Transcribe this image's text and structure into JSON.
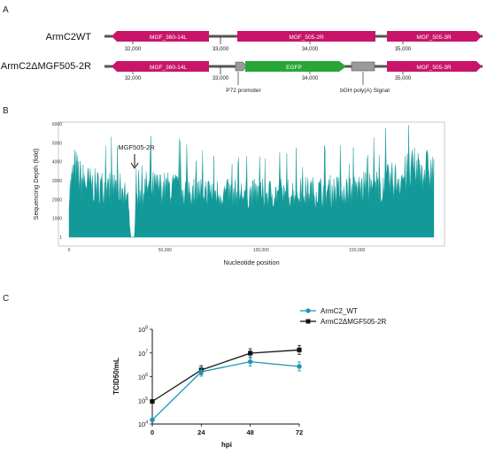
{
  "panels": {
    "a": "A",
    "b": "B",
    "c": "C"
  },
  "panel_a": {
    "wt_label": "ArmC2WT",
    "mut_label": "ArmC2ΔMGF505-2R",
    "wt_genes": [
      "MGF_360-14L",
      "MGF_505-2R",
      "MGF_505-3R"
    ],
    "mut_genes": [
      "MGF_360-14L",
      "EGFP",
      "MGF_505-3R"
    ],
    "wt_ticks": [
      "32,000",
      "33,000",
      "34,000",
      "35,000"
    ],
    "mut_ticks": [
      "32,000",
      "33,000",
      "34,000",
      "35,000"
    ],
    "p72_label": "P72 promoter",
    "polya_label": "bGH poly(A) Signal",
    "colors": {
      "gene": "#c8156a",
      "egfp": "#27a737",
      "element": "#9a9a9a"
    }
  },
  "chart_data": [
    {
      "type": "area",
      "xlabel": "Nucleotide position",
      "ylabel": "Sequencing Depth (fold)",
      "xlim": [
        0,
        190000
      ],
      "ylim": [
        0,
        6000
      ],
      "xticks": [
        "0",
        "50,000",
        "100,000",
        "150,000"
      ],
      "yticks": [
        "1",
        "1000",
        "2000",
        "3000",
        "4000",
        "5000",
        "6000"
      ],
      "annotation": "MGF505-2R",
      "color": "#139a98",
      "profile": [
        {
          "x": 0,
          "y": 2800
        },
        {
          "x": 3000,
          "y": 4200
        },
        {
          "x": 6000,
          "y": 3600
        },
        {
          "x": 12000,
          "y": 3200
        },
        {
          "x": 20000,
          "y": 3100
        },
        {
          "x": 29000,
          "y": 3000
        },
        {
          "x": 31500,
          "y": 1200
        },
        {
          "x": 32200,
          "y": 0
        },
        {
          "x": 34000,
          "y": 0
        },
        {
          "x": 34800,
          "y": 2400
        },
        {
          "x": 40000,
          "y": 3100
        },
        {
          "x": 60000,
          "y": 3000
        },
        {
          "x": 80000,
          "y": 2700
        },
        {
          "x": 100000,
          "y": 2700
        },
        {
          "x": 120000,
          "y": 2800
        },
        {
          "x": 140000,
          "y": 2900
        },
        {
          "x": 160000,
          "y": 3100
        },
        {
          "x": 175000,
          "y": 3800
        },
        {
          "x": 182000,
          "y": 4300
        },
        {
          "x": 189000,
          "y": 4000
        }
      ]
    },
    {
      "type": "line",
      "xlabel": "hpi",
      "ylabel": "TCID50/mL",
      "x": [
        0,
        24,
        48,
        72
      ],
      "yscale": "log",
      "ylim": [
        10000,
        100000000
      ],
      "ytick_exponents": [
        "4",
        "5",
        "6",
        "7",
        "8"
      ],
      "legend_position": "top-right",
      "series": [
        {
          "name": "ArmC2_WT",
          "color": "#1a96b4",
          "marker": "circle",
          "values": [
            15000,
            1600000,
            4300000,
            2700000
          ]
        },
        {
          "name": "ArmC2ΔMGF505-2R",
          "color": "#111111",
          "marker": "square",
          "values": [
            90000,
            1900000,
            9800000,
            13500000
          ]
        }
      ]
    }
  ]
}
